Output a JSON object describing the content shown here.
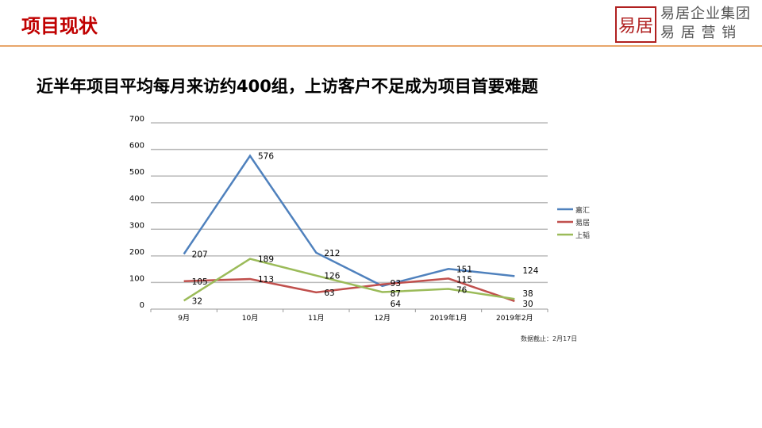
{
  "header": {
    "title": "项目现状",
    "logo_mark": "易居",
    "logo_line1": "易居企业集团",
    "logo_line2": "易 居 营 销"
  },
  "subtitle": "近半年项目平均每月来访约400组，上访客户不足成为项目首要难题",
  "note": "数据截止：2月17日",
  "chart_data": {
    "type": "line",
    "categories": [
      "9月",
      "10月",
      "11月",
      "12月",
      "2019年1月",
      "2019年2月"
    ],
    "ylim": [
      0,
      700
    ],
    "yticks": [
      0,
      100,
      200,
      300,
      400,
      500,
      600,
      700
    ],
    "grid": true,
    "legend": "right",
    "series": [
      {
        "name": "嘉汇",
        "color": "#4f81bd",
        "values": [
          207,
          576,
          212,
          87,
          151,
          124
        ]
      },
      {
        "name": "易居",
        "color": "#c0504d",
        "values": [
          105,
          113,
          63,
          93,
          115,
          30
        ]
      },
      {
        "name": "上韬",
        "color": "#9bbb59",
        "values": [
          32,
          189,
          126,
          64,
          76,
          38
        ]
      }
    ]
  }
}
